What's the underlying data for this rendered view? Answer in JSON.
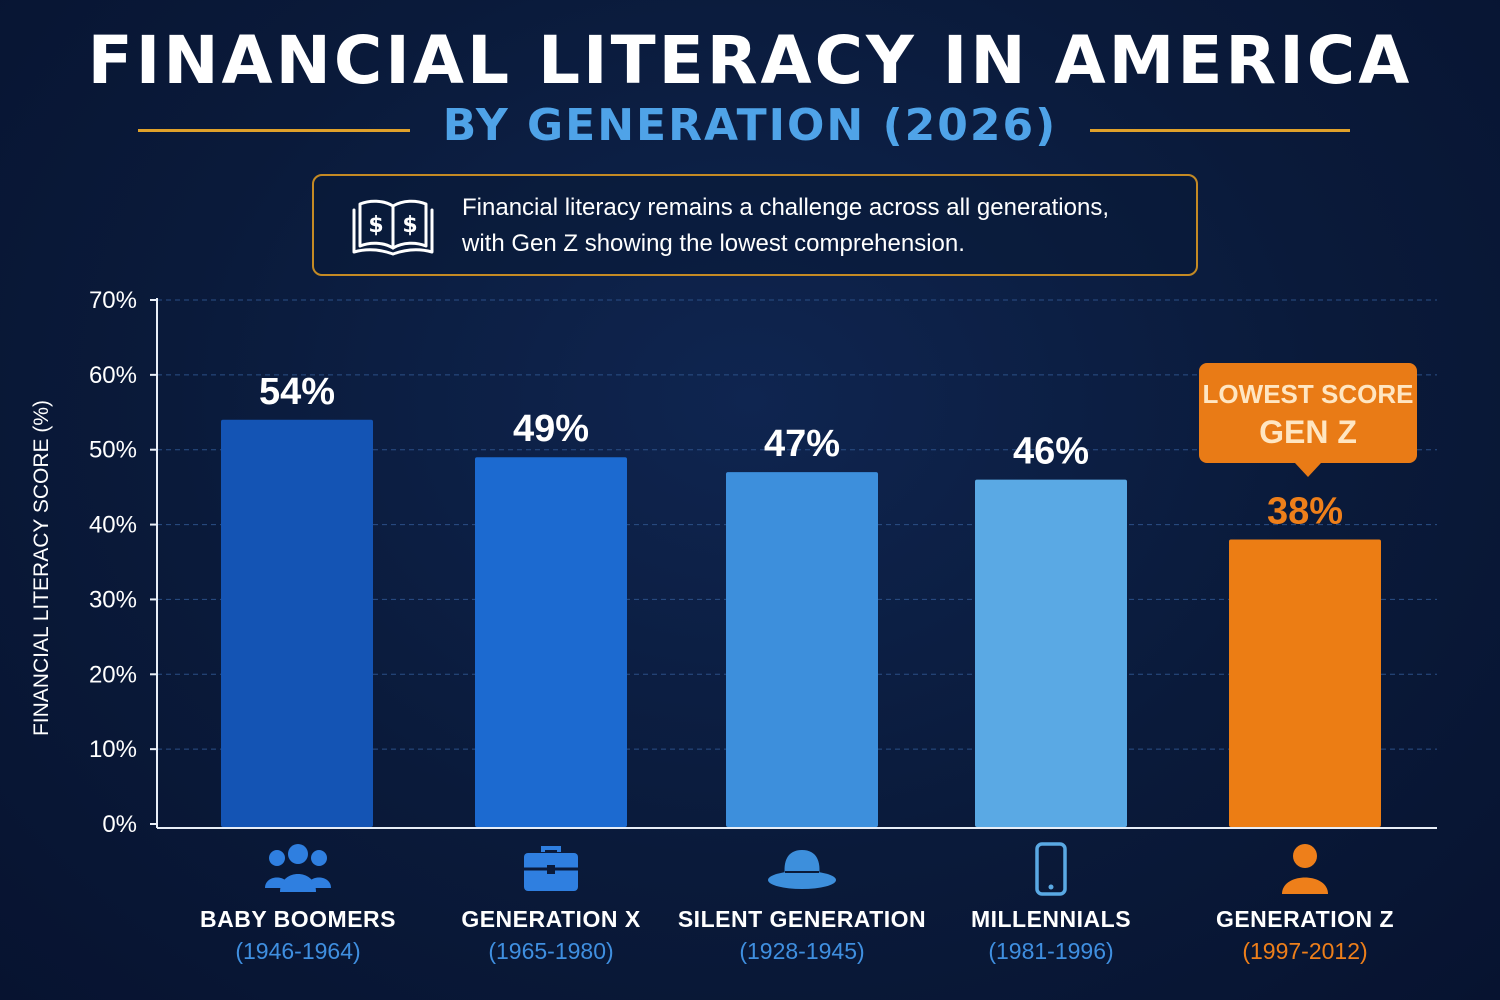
{
  "header": {
    "title": "FINANCIAL LITERACY IN AMERICA",
    "subtitle": "BY GENERATION (2026)"
  },
  "callout": {
    "icon": "book-dollar-icon",
    "line1": "Financial literacy remains a challenge across all generations,",
    "line2": "with Gen Z showing the lowest comprehension."
  },
  "badge": {
    "line1": "LOWEST SCORE",
    "line2": "GEN Z"
  },
  "categories": [
    {
      "name": "BABY BOOMERS",
      "years": "(1946-1964)",
      "icon": "group-icon"
    },
    {
      "name": "GENERATION X",
      "years": "(1965-1980)",
      "icon": "briefcase-icon"
    },
    {
      "name": "SILENT GENERATION",
      "years": "(1928-1945)",
      "icon": "hat-icon"
    },
    {
      "name": "MILLENNIALS",
      "years": "(1981-1996)",
      "icon": "smartphone-icon"
    },
    {
      "name": "GENERATION Z",
      "years": "(1997-2012)",
      "icon": "person-icon"
    }
  ],
  "colors": {
    "background": "#0a1a3a",
    "bars": [
      "#1454b4",
      "#1c6ad0",
      "#3d8fdc",
      "#5aa9e4",
      "#ec7d14"
    ],
    "accent": "#ee7f1a",
    "gold": "#e0a12a",
    "subtitle": "#4fa3e8"
  },
  "chart_data": {
    "type": "bar",
    "title": "FINANCIAL LITERACY IN AMERICA",
    "subtitle": "BY GENERATION (2026)",
    "categories": [
      "BABY BOOMERS",
      "GENERATION X",
      "SILENT GENERATION",
      "MILLENNIALS",
      "GENERATION Z"
    ],
    "values": [
      54,
      49,
      47,
      46,
      38
    ],
    "value_labels": [
      "54%",
      "49%",
      "47%",
      "46%",
      "38%"
    ],
    "xlabel": "",
    "ylabel": "FINANCIAL LITERACY SCORE (%)",
    "ylim": [
      0,
      70
    ],
    "yticks": [
      0,
      10,
      20,
      30,
      40,
      50,
      60,
      70
    ],
    "ytick_labels": [
      "0%",
      "10%",
      "20%",
      "30%",
      "40%",
      "50%",
      "60%",
      "70%"
    ],
    "grid": true,
    "highlight": "GENERATION Z"
  }
}
